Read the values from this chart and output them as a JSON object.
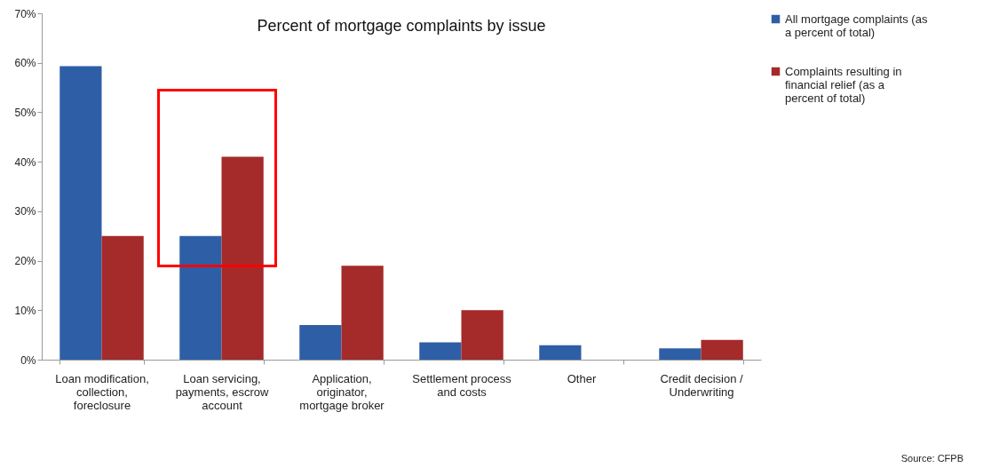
{
  "chart_data": {
    "type": "bar",
    "title": "Percent of mortgage complaints by issue",
    "categories": [
      "Loan modification, collection, foreclosure",
      "Loan servicing, payments, escrow account",
      "Application, originator, mortgage broker",
      "Settlement process and costs",
      "Other",
      "Credit decision / Underwriting"
    ],
    "series": [
      {
        "name": "All mortgage complaints (as a percent of total)",
        "color": "#2e5fa6",
        "values": [
          59.3,
          25,
          7,
          3.5,
          2.9,
          2.3
        ]
      },
      {
        "name": "Complaints resulting in financial relief (as a percent of total)",
        "color": "#a52a2a",
        "values": [
          25,
          41,
          19,
          10,
          null,
          4
        ]
      }
    ],
    "ylim": [
      0,
      70
    ],
    "yticks": [
      {
        "value": 0,
        "label": "0%"
      },
      {
        "value": 10,
        "label": "10%"
      },
      {
        "value": 20,
        "label": "20%"
      },
      {
        "value": 30,
        "label": "30%"
      },
      {
        "value": 40,
        "label": "40%"
      },
      {
        "value": 50,
        "label": "50%"
      },
      {
        "value": 60,
        "label": "60%"
      },
      {
        "value": 70,
        "label": "70%"
      }
    ],
    "grid": false,
    "legend": "right",
    "annotations": [
      "Source: CFPB"
    ]
  }
}
